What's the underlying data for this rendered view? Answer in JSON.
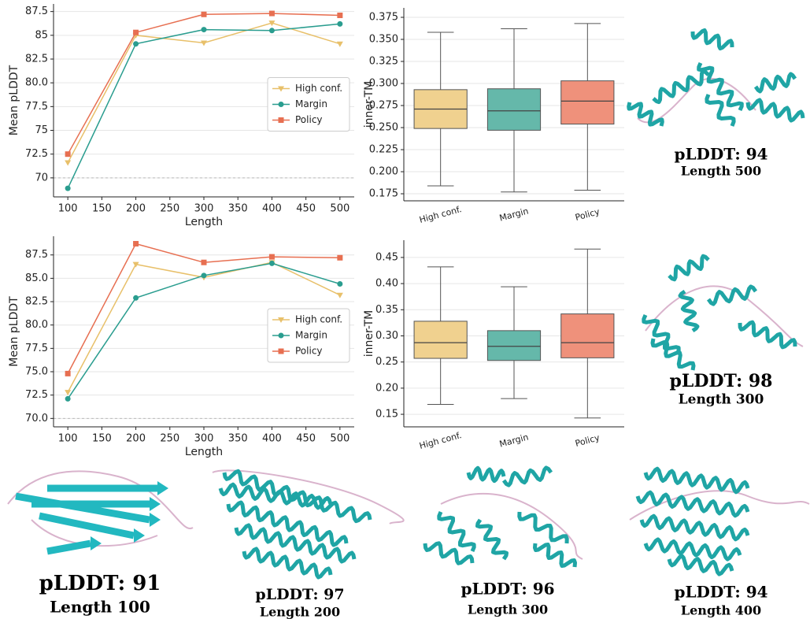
{
  "chart_data": [
    {
      "type": "line",
      "x": [
        100,
        200,
        300,
        400,
        500
      ],
      "xlim": [
        79,
        521
      ],
      "xticks": [
        100,
        150,
        200,
        250,
        300,
        350,
        400,
        450,
        500
      ],
      "ylim": [
        68.0,
        88.3
      ],
      "yticks": [
        70,
        72.5,
        75,
        {
          "value": 77.5,
          "label": "77.5"
        },
        {
          "value": 80,
          "label": "80.0"
        },
        82.5,
        85,
        87.5
      ],
      "x_label": "Length",
      "y_label": "Mean pLDDT",
      "grid": true,
      "legend": "center right",
      "reference_line": 70,
      "series": [
        {
          "name": "High conf.",
          "color": "#e8c06a",
          "marker": "triangle-down",
          "values": [
            71.6,
            85.0,
            84.2,
            86.3,
            84.1
          ]
        },
        {
          "name": "Margin",
          "color": "#2a9d8f",
          "marker": "circle",
          "values": [
            68.9,
            84.1,
            85.6,
            85.5,
            86.2
          ]
        },
        {
          "name": "Policy",
          "color": "#e76f51",
          "marker": "square",
          "values": [
            72.5,
            85.3,
            87.2,
            87.3,
            87.1
          ]
        }
      ]
    },
    {
      "type": "box",
      "y_label": "inner-TM",
      "grid": true,
      "ylim": [
        0.167,
        0.3857
      ],
      "yticks": [
        0.175,
        {
          "value": 0.2,
          "label": "0.200"
        },
        0.225,
        {
          "value": 0.25,
          "label": "0.250"
        },
        0.275,
        {
          "value": 0.3,
          "label": "0.300"
        },
        0.325,
        {
          "value": 0.35,
          "label": "0.350"
        },
        0.375
      ],
      "boxes": [
        {
          "name": "High conf.",
          "color": "#f0d18f",
          "min": 0.184,
          "q1": 0.249,
          "median": 0.271,
          "q3": 0.293,
          "max": 0.358
        },
        {
          "name": "Margin",
          "color": "#65b8aa",
          "min": 0.177,
          "q1": 0.247,
          "median": 0.269,
          "q3": 0.294,
          "max": 0.362
        },
        {
          "name": "Policy",
          "color": "#ef917b",
          "min": 0.179,
          "q1": 0.254,
          "median": 0.28,
          "q3": 0.303,
          "max": 0.368
        }
      ]
    },
    {
      "type": "line",
      "x": [
        100,
        200,
        300,
        400,
        500
      ],
      "xlim": [
        79,
        521
      ],
      "xticks": [
        100,
        150,
        200,
        250,
        300,
        350,
        400,
        450,
        500
      ],
      "ylim": [
        69.1,
        89.5
      ],
      "yticks": [
        {
          "value": 70,
          "label": "70.0"
        },
        72.5,
        {
          "value": 75,
          "label": "75.0"
        },
        77.5,
        {
          "value": 80,
          "label": "80.0"
        },
        82.5,
        {
          "value": 85,
          "label": "85.0"
        },
        87.5
      ],
      "x_label": "Length",
      "y_label": "Mean pLDDT",
      "grid": true,
      "legend": "center right",
      "reference_line": 70,
      "series": [
        {
          "name": "High conf.",
          "color": "#e8c06a",
          "marker": "triangle-down",
          "values": [
            72.8,
            86.5,
            85.1,
            86.7,
            83.2
          ]
        },
        {
          "name": "Margin",
          "color": "#2a9d8f",
          "marker": "circle",
          "values": [
            72.1,
            82.9,
            85.3,
            86.6,
            84.4
          ]
        },
        {
          "name": "Policy",
          "color": "#e76f51",
          "marker": "square",
          "values": [
            74.8,
            88.7,
            86.7,
            87.3,
            87.2
          ]
        }
      ]
    },
    {
      "type": "box",
      "y_label": "inner-TM",
      "grid": true,
      "ylim": [
        0.126,
        0.483
      ],
      "yticks": [
        0.15,
        {
          "value": 0.2,
          "label": "0.20"
        },
        0.25,
        {
          "value": 0.3,
          "label": "0.30"
        },
        0.35,
        {
          "value": 0.4,
          "label": "0.40"
        },
        0.45
      ],
      "boxes": [
        {
          "name": "High conf.",
          "color": "#f0d18f",
          "min": 0.169,
          "q1": 0.257,
          "median": 0.287,
          "q3": 0.328,
          "max": 0.432
        },
        {
          "name": "Margin",
          "color": "#65b8aa",
          "min": 0.18,
          "q1": 0.253,
          "median": 0.28,
          "q3": 0.31,
          "max": 0.394
        },
        {
          "name": "Policy",
          "color": "#ef917b",
          "min": 0.143,
          "q1": 0.258,
          "median": 0.287,
          "q3": 0.342,
          "max": 0.466
        }
      ]
    }
  ],
  "structures": [
    {
      "plddt": "pLDDT: 94",
      "length": "Length 500"
    },
    {
      "plddt": "pLDDT: 98",
      "length": "Length 300"
    },
    {
      "plddt": "pLDDT: 91",
      "length": "Length 100"
    },
    {
      "plddt": "pLDDT: 97",
      "length": "Length 200"
    },
    {
      "plddt": "pLDDT: 96",
      "length": "Length 300"
    },
    {
      "plddt": "pLDDT: 94",
      "length": "Length 400"
    }
  ]
}
